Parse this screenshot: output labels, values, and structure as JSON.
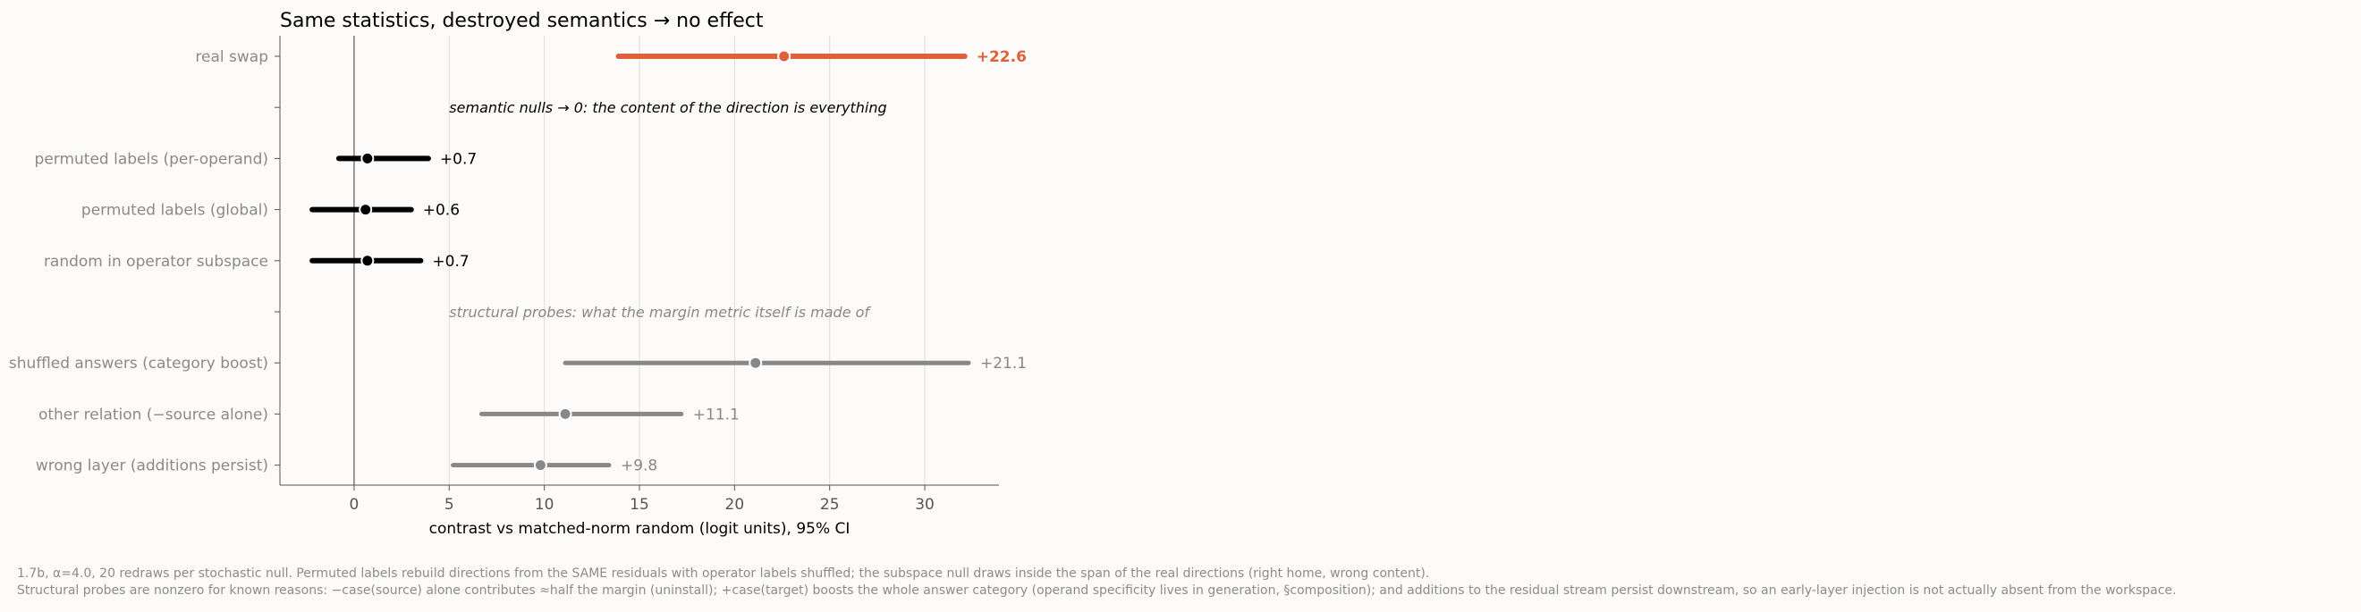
{
  "chart_data": {
    "type": "forest",
    "title": "Same statistics, destroyed semantics → no effect",
    "xlabel": "contrast vs matched-norm random (logit units), 95% CI",
    "xlim": [
      -3.9,
      33.9
    ],
    "xticks": [
      0,
      5,
      10,
      15,
      20,
      25,
      30
    ],
    "grid": "vertical",
    "reference_line": 0,
    "rows": [
      {
        "label": "real swap",
        "estimate": 22.6,
        "ci_low": 13.9,
        "ci_high": 32.1,
        "value_label": "+22.6",
        "group": "real"
      },
      {
        "label": "",
        "section_note": "semantic nulls → 0: the content of the direction is everything",
        "group": "semantic-note"
      },
      {
        "label": "permuted labels (per-operand)",
        "estimate": 0.7,
        "ci_low": -0.8,
        "ci_high": 3.9,
        "value_label": "+0.7",
        "group": "semantic"
      },
      {
        "label": "permuted labels (global)",
        "estimate": 0.6,
        "ci_low": -2.2,
        "ci_high": 3.0,
        "value_label": "+0.6",
        "group": "semantic"
      },
      {
        "label": "random in operator subspace",
        "estimate": 0.7,
        "ci_low": -2.2,
        "ci_high": 3.5,
        "value_label": "+0.7",
        "group": "semantic"
      },
      {
        "label": "",
        "section_note": "structural probes: what the margin metric itself is made of",
        "group": "structural-note"
      },
      {
        "label": "shuffled answers (category boost)",
        "estimate": 21.1,
        "ci_low": 11.1,
        "ci_high": 32.3,
        "value_label": "+21.1",
        "group": "structural"
      },
      {
        "label": "other relation (−source alone)",
        "estimate": 11.1,
        "ci_low": 6.7,
        "ci_high": 17.2,
        "value_label": "+11.1",
        "group": "structural"
      },
      {
        "label": "wrong layer (additions persist)",
        "estimate": 9.8,
        "ci_low": 5.2,
        "ci_high": 13.4,
        "value_label": "+9.8",
        "group": "structural"
      }
    ],
    "colors": {
      "real": "#e0603a",
      "semantic": "#000000",
      "structural": "#888888",
      "axis": "#555555",
      "grid": "#dddddd"
    }
  },
  "footnotes": [
    "1.7b, α=4.0, 20 redraws per stochastic null. Permuted labels rebuild directions from the SAME residuals with operator labels shuffled; the subspace null draws inside the span of the real directions (right home, wrong content).",
    "Structural probes are nonzero for known reasons: −case(source) alone contributes ≈half the margin (uninstall); +case(target) boosts the whole answer category (operand specificity lives in generation, §composition); and additions to the residual stream persist downstream, so an early-layer injection is not actually absent from the workspace."
  ]
}
